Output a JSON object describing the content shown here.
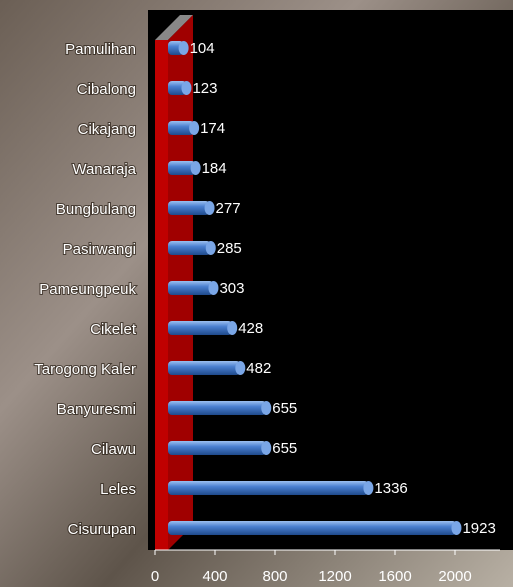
{
  "chart_data": {
    "type": "bar",
    "orientation": "horizontal",
    "categories": [
      "Pamulihan",
      "Cibalong",
      "Cikajang",
      "Wanaraja",
      "Bungbulang",
      "Pasirwangi",
      "Pameungpeuk",
      "Cikelet",
      "Tarogong Kaler",
      "Banyuresmi",
      "Cilawu",
      "Leles",
      "Cisurupan"
    ],
    "values": [
      104,
      123,
      174,
      184,
      277,
      285,
      303,
      428,
      482,
      655,
      655,
      1336,
      1923
    ],
    "color": "#4a7fd0",
    "xlim": [
      0,
      2300
    ],
    "xticks": [
      0,
      400,
      800,
      1200,
      1600,
      2000
    ]
  }
}
